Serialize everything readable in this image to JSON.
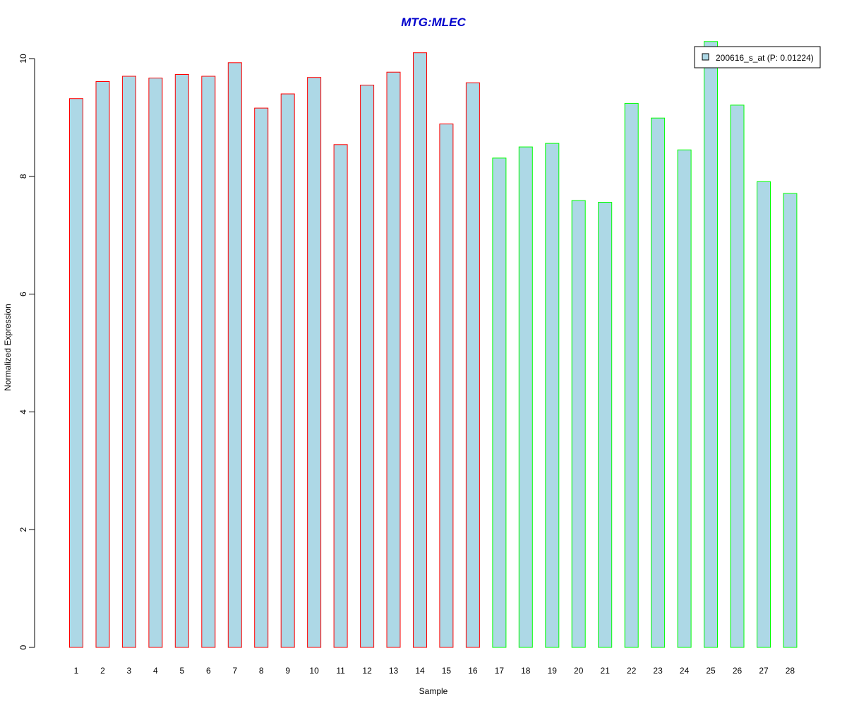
{
  "chart_data": {
    "type": "bar",
    "title": "MTG:MLEC",
    "xlabel": "Sample",
    "ylabel": "Normalized Expression",
    "ylim": [
      0,
      10
    ],
    "yticks": [
      0,
      2,
      4,
      6,
      8,
      10
    ],
    "categories": [
      "1",
      "2",
      "3",
      "4",
      "5",
      "6",
      "7",
      "8",
      "9",
      "10",
      "11",
      "12",
      "13",
      "14",
      "15",
      "16",
      "17",
      "18",
      "19",
      "20",
      "21",
      "22",
      "23",
      "24",
      "25",
      "26",
      "27",
      "28"
    ],
    "series": [
      {
        "name": "200616_s_at (P: 0.01224)",
        "values": [
          9.32,
          9.61,
          9.7,
          9.67,
          9.73,
          9.7,
          9.93,
          9.16,
          9.4,
          9.68,
          8.54,
          9.55,
          9.77,
          10.1,
          8.89,
          9.59,
          8.31,
          8.5,
          8.56,
          7.59,
          7.56,
          9.24,
          8.99,
          8.45,
          10.29,
          9.21,
          7.91,
          7.71
        ]
      }
    ],
    "groups": [
      {
        "range": [
          1,
          16
        ],
        "border_color": "#ff0000"
      },
      {
        "range": [
          17,
          28
        ],
        "border_color": "#00ff00"
      }
    ],
    "bar_fill": "#add8e6",
    "title_color": "#0000cc",
    "grid": false,
    "legend_position": "top-right"
  }
}
